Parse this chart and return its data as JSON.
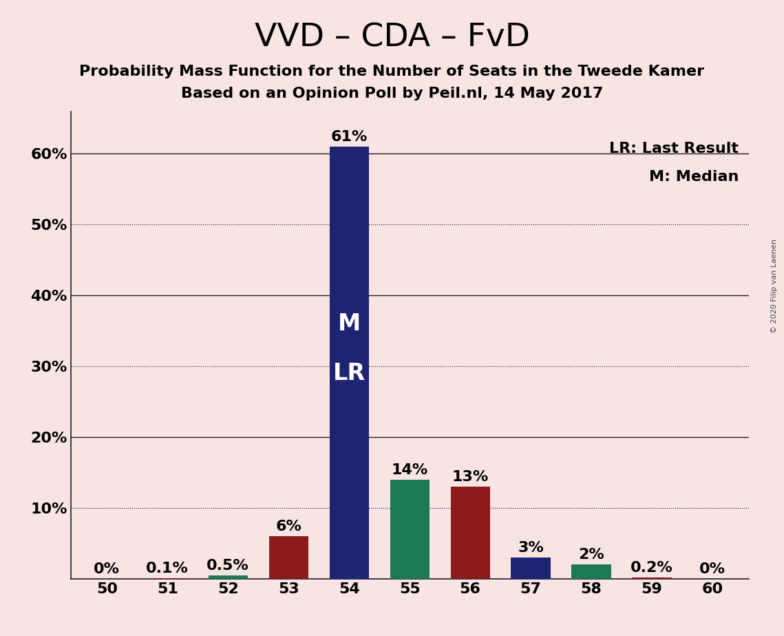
{
  "title": "VVD – CDA – FvD",
  "subtitle1": "Probability Mass Function for the Number of Seats in the Tweede Kamer",
  "subtitle2": "Based on an Opinion Poll by Peil.nl, 14 May 2017",
  "watermark": "© 2020 Filip van Laenen",
  "categories": [
    50,
    51,
    52,
    53,
    54,
    55,
    56,
    57,
    58,
    59,
    60
  ],
  "values": [
    0.0,
    0.1,
    0.5,
    6.0,
    61.0,
    14.0,
    13.0,
    3.0,
    2.0,
    0.2,
    0.0
  ],
  "bar_colors": [
    "#8B1A1A",
    "#8B1A1A",
    "#1B7A50",
    "#8B1A1A",
    "#1C2473",
    "#1B7A50",
    "#8B1A1A",
    "#1C2473",
    "#1B7A50",
    "#8B1A1A",
    "#1B7A50"
  ],
  "value_labels": [
    "0%",
    "0.1%",
    "0.5%",
    "6%",
    "61%",
    "14%",
    "13%",
    "3%",
    "2%",
    "0.2%",
    "0%"
  ],
  "background_color": "#F9E4E4",
  "ylim_max": 66,
  "ytick_vals": [
    0,
    10,
    20,
    30,
    40,
    50,
    60
  ],
  "ytick_labels": [
    "",
    "10%",
    "20%",
    "30%",
    "40%",
    "50%",
    "60%"
  ],
  "solid_grid": [
    20,
    40,
    60
  ],
  "dotted_grid": [
    10,
    30,
    50
  ],
  "median_label": "M",
  "last_result_label": "LR",
  "median_seat": 54,
  "legend_lr": "LR: Last Result",
  "legend_m": "M: Median",
  "title_fontsize": 34,
  "subtitle_fontsize": 16,
  "legend_fontsize": 16,
  "axis_fontsize": 16,
  "bar_label_fontsize": 16,
  "inner_label_fontsize": 24,
  "watermark_fontsize": 8
}
